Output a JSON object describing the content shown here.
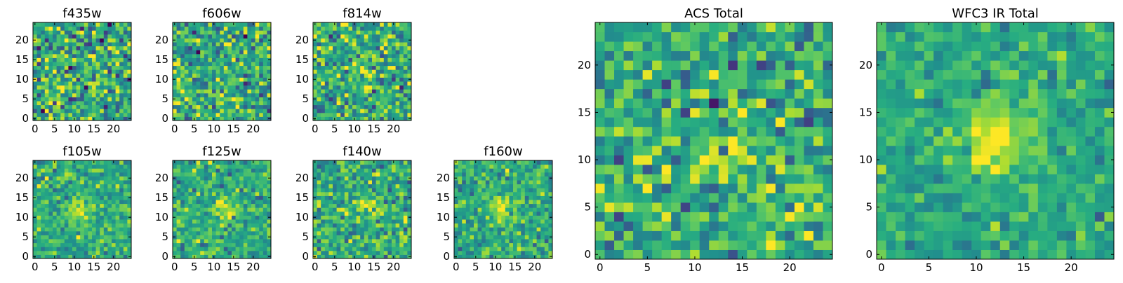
{
  "figure": {
    "colormap": "viridis",
    "cell_noise_seed": 7
  },
  "chart_data": [
    {
      "type": "heatmap",
      "title": "f435w",
      "grid_size": 25,
      "xlim": [
        0,
        24
      ],
      "ylim": [
        0,
        24
      ],
      "xticks": [
        0,
        5,
        10,
        15,
        20
      ],
      "yticks": [
        0,
        5,
        10,
        15,
        20
      ],
      "source_center": [
        13,
        12
      ],
      "source_strength": 0.05,
      "noise_level": 0.95
    },
    {
      "type": "heatmap",
      "title": "f606w",
      "grid_size": 25,
      "xlim": [
        0,
        24
      ],
      "ylim": [
        0,
        24
      ],
      "xticks": [
        0,
        5,
        10,
        15,
        20
      ],
      "yticks": [
        0,
        5,
        10,
        15,
        20
      ],
      "source_center": [
        13,
        12
      ],
      "source_strength": 0.1,
      "noise_level": 0.9
    },
    {
      "type": "heatmap",
      "title": "f814w",
      "grid_size": 25,
      "xlim": [
        0,
        24
      ],
      "ylim": [
        0,
        24
      ],
      "xticks": [
        0,
        5,
        10,
        15,
        20
      ],
      "yticks": [
        0,
        5,
        10,
        15,
        20
      ],
      "source_center": [
        13,
        12
      ],
      "source_strength": 0.25,
      "noise_level": 0.85
    },
    {
      "type": "heatmap",
      "title": "f105w",
      "grid_size": 25,
      "xlim": [
        0,
        24
      ],
      "ylim": [
        0,
        24
      ],
      "xticks": [
        0,
        5,
        10,
        15,
        20
      ],
      "yticks": [
        0,
        5,
        10,
        15,
        20
      ],
      "source_center": [
        12,
        12
      ],
      "source_strength": 0.55,
      "noise_level": 0.55
    },
    {
      "type": "heatmap",
      "title": "f125w",
      "grid_size": 25,
      "xlim": [
        0,
        24
      ],
      "ylim": [
        0,
        24
      ],
      "xticks": [
        0,
        5,
        10,
        15,
        20
      ],
      "yticks": [
        0,
        5,
        10,
        15,
        20
      ],
      "source_center": [
        13,
        12
      ],
      "source_strength": 0.45,
      "noise_level": 0.6
    },
    {
      "type": "heatmap",
      "title": "f140w",
      "grid_size": 25,
      "xlim": [
        0,
        24
      ],
      "ylim": [
        0,
        24
      ],
      "xticks": [
        0,
        5,
        10,
        15,
        20
      ],
      "yticks": [
        0,
        5,
        10,
        15,
        20
      ],
      "source_center": [
        13,
        12
      ],
      "source_strength": 0.4,
      "noise_level": 0.7
    },
    {
      "type": "heatmap",
      "title": "f160w",
      "grid_size": 25,
      "xlim": [
        0,
        24
      ],
      "ylim": [
        0,
        24
      ],
      "xticks": [
        0,
        5,
        10,
        15,
        20
      ],
      "yticks": [
        0,
        5,
        10,
        15,
        20
      ],
      "source_center": [
        12,
        12
      ],
      "source_strength": 0.55,
      "noise_level": 0.6
    },
    {
      "type": "heatmap",
      "title": "ACS Total",
      "grid_size": 25,
      "xlim": [
        0,
        24
      ],
      "ylim": [
        0,
        24
      ],
      "xticks": [
        0,
        5,
        10,
        15,
        20
      ],
      "yticks": [
        0,
        5,
        10,
        15,
        20
      ],
      "source_center": [
        13,
        12
      ],
      "source_strength": 0.3,
      "noise_level": 0.8
    },
    {
      "type": "heatmap",
      "title": "WFC3 IR Total",
      "grid_size": 25,
      "xlim": [
        0,
        24
      ],
      "ylim": [
        0,
        24
      ],
      "xticks": [
        0,
        5,
        10,
        15,
        20
      ],
      "yticks": [
        0,
        5,
        10,
        15,
        20
      ],
      "source_center": [
        12,
        12
      ],
      "source_strength": 0.75,
      "noise_level": 0.45
    }
  ]
}
